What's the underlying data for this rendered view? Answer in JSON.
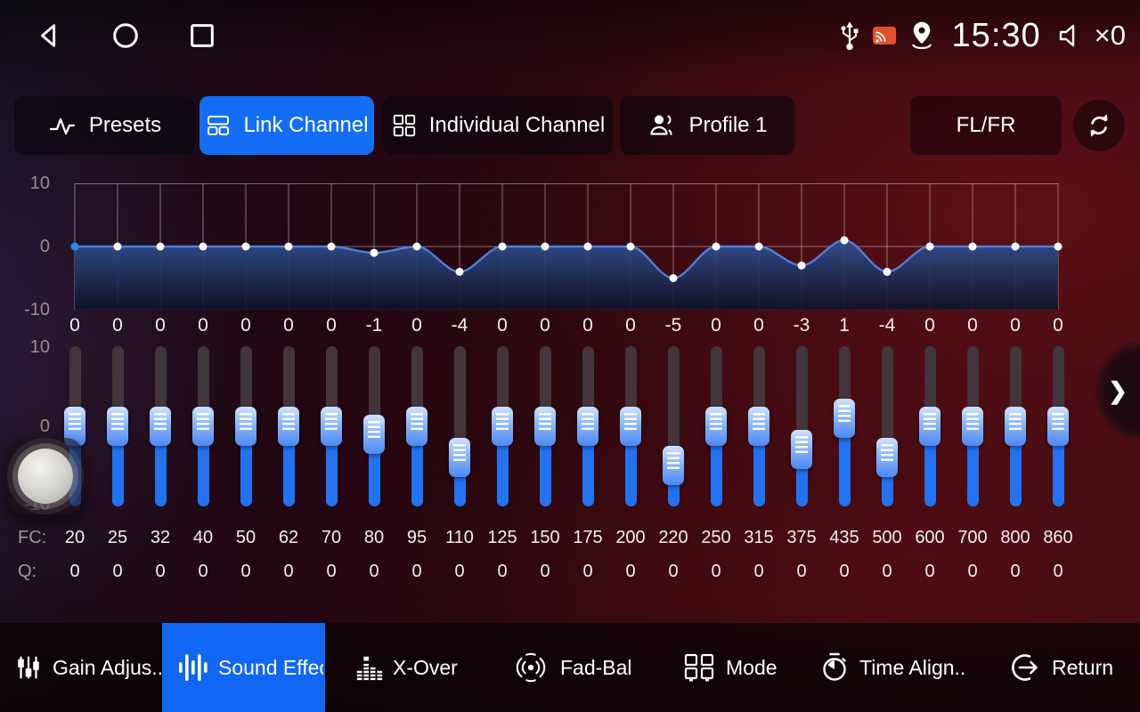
{
  "colors": {
    "accent": "#146ef5",
    "slider_blue": "#2173f2",
    "curve_line": "#4d7fe0",
    "first_dot": "#2f87f0",
    "cast_orange": "#e2512e"
  },
  "status_bar": {
    "time": "15:30",
    "volume": "×0"
  },
  "tabs": {
    "items": [
      {
        "label": "Presets",
        "selected": false
      },
      {
        "label": "Link Channel",
        "selected": true
      },
      {
        "label": "Individual Channel",
        "selected": false
      },
      {
        "label": "Profile 1",
        "selected": false
      }
    ],
    "channel_label": "FL/FR"
  },
  "eq": {
    "axis_top": "10",
    "axis_zero": "0",
    "axis_bottom": "-10",
    "fc_label": "FC:",
    "q_label": "Q:",
    "gains": [
      0,
      0,
      0,
      0,
      0,
      0,
      0,
      -1,
      0,
      -4,
      0,
      0,
      0,
      0,
      -5,
      0,
      0,
      -3,
      1,
      -4,
      0,
      0,
      0,
      0
    ],
    "fc": [
      20,
      25,
      32,
      40,
      50,
      62,
      70,
      80,
      95,
      110,
      125,
      150,
      175,
      200,
      220,
      250,
      315,
      375,
      435,
      500,
      600,
      700,
      800,
      860
    ],
    "q": [
      0,
      0,
      0,
      0,
      0,
      0,
      0,
      0,
      0,
      0,
      0,
      0,
      0,
      0,
      0,
      0,
      0,
      0,
      0,
      0,
      0,
      0,
      0,
      0
    ]
  },
  "bottom_nav": {
    "items": [
      {
        "label": "Gain Adjus..",
        "selected": false
      },
      {
        "label": "Sound Effect",
        "selected": true
      },
      {
        "label": "X-Over",
        "selected": false
      },
      {
        "label": "Fad-Bal",
        "selected": false
      },
      {
        "label": "Mode",
        "selected": false
      },
      {
        "label": "Time Align..",
        "selected": false
      },
      {
        "label": "Return",
        "selected": false
      }
    ]
  }
}
